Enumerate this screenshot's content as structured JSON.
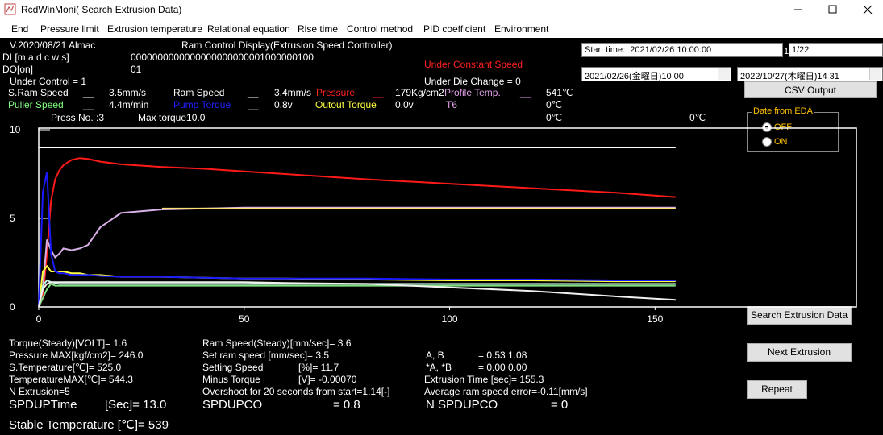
{
  "window_title": "RcdWinMoni( Search Extrusion Data)",
  "menu": [
    "End",
    "Pressure limit",
    "Extrusion temperature",
    "Relational equation",
    "Rise time",
    "Control method",
    "PID coefficient",
    "Environment"
  ],
  "header": [
    "V.2020/08/21 Almac",
    "Ram Control Display(Extrusion Speed Controller)",
    "DI [m a d c w s]",
    "0000000000000000000000001000000100",
    "DO[on]",
    "01",
    "Under Constant Speed",
    "Under Control = 1",
    "Under Die Change = 0"
  ],
  "readouts": [
    "S.Ram Speed",
    "__",
    "3.5mm/s",
    "Ram Speed",
    "__",
    "3.4mm/s",
    "Pressure",
    "__",
    "179Kg/cm2",
    "Profile Temp.",
    "__",
    "541℃",
    "Puller Speed",
    "__",
    "4.4m/min",
    "Pump Torque",
    "__",
    "0.8v",
    "Outout Torque",
    "0.0v",
    "T6",
    "0℃",
    "Press No. :3",
    "Max torque10.0",
    "0℃",
    "0℃"
  ],
  "controls": {
    "start_time_label": "Start time:",
    "start_time": "2021/02/26 10:00:00",
    "index_label": "1",
    "index": "1/22",
    "date_from": "2021/02/26(金曜日)10 00",
    "date_to": "2022/10/27(木曜日)14 31",
    "csv_button": "CSV Output",
    "group_title": "Date from EDA",
    "radio_off": "OFF",
    "radio_on": "ON",
    "search_button": "Search Extrusion Data",
    "next_button": "Next Extrusion",
    "repeat_button": "Repeat"
  },
  "stats": [
    "Torque(Steady)[VOLT]= 1.6",
    "Pressure MAX[kgf/cm2]= 246.0",
    "S.Temperature[℃]= 525.0",
    "TemperatureMAX[℃]= 544.3",
    "N Extrusion=5",
    "SPDUPTime",
    "[Sec]= 13.0",
    "Stable Temperature [℃]= 539",
    "Ram Speed(Steady)[mm/sec]= 3.6",
    "Set ram speed [mm/sec]= 3.5",
    "Setting Speed",
    "[%]= 11.7",
    "Minus Torque",
    "[V]= -0.00070",
    "Overshoot  for 20 seconds from start=1.14[-]",
    "SPDUPCO",
    "= 0.8",
    "A, B",
    "= 0.53 1.08",
    "*A, *B",
    "= 0.00 0.00",
    "Extrusion Time [sec]= 155.3",
    "Average ram speed error=-0.11[mm/s]",
    "N SPDUPCO",
    "= 0"
  ],
  "chart_data": {
    "type": "line",
    "x": [
      0,
      1,
      2,
      3,
      4,
      5,
      6,
      8,
      10,
      12,
      15,
      20,
      30,
      40,
      50,
      60,
      80,
      100,
      120,
      140,
      155
    ],
    "xlim": [
      0,
      199
    ],
    "ylim": [
      0,
      10
    ],
    "xticks": [
      0,
      50,
      100,
      150
    ],
    "yticks": [
      0,
      5,
      10
    ],
    "series": [
      {
        "color": "#ffffff",
        "values": [
          9.0,
          9.0,
          9.0,
          9.0,
          9.0,
          9.0,
          9.0,
          9.0,
          9.0,
          9.0,
          9.0,
          9.0,
          9.0,
          9.0,
          9.0,
          9.0,
          9.0,
          9.0,
          9.0,
          9.0,
          9.0
        ]
      },
      {
        "color": "#ff1a1a",
        "values": [
          0,
          0.5,
          3,
          6,
          7.2,
          7.7,
          8.0,
          8.3,
          8.4,
          8.35,
          8.2,
          8.05,
          7.9,
          7.8,
          7.65,
          7.5,
          7.2,
          6.95,
          6.7,
          6.45,
          6.2
        ]
      },
      {
        "color": "#d8b0e8",
        "values": [
          0,
          1,
          3.8,
          3.2,
          2.8,
          3.0,
          3.3,
          3.2,
          3.3,
          3.5,
          4.5,
          5.3,
          5.5,
          5.55,
          5.6,
          5.6,
          5.6,
          5.6,
          5.6,
          5.6,
          5.6
        ]
      },
      {
        "color": "#ffe070",
        "values": [
          null,
          null,
          null,
          null,
          null,
          null,
          null,
          null,
          null,
          null,
          null,
          null,
          5.55,
          5.55,
          5.55,
          5.55,
          5.55,
          5.55,
          5.55,
          5.55,
          5.55
        ]
      },
      {
        "color": "#ffff40",
        "values": [
          0,
          2.0,
          2.3,
          2.0,
          2.0,
          2.0,
          2.0,
          1.9,
          1.9,
          1.8,
          1.8,
          1.7,
          1.7,
          1.65,
          1.6,
          1.6,
          1.55,
          1.5,
          1.5,
          1.45,
          1.45
        ]
      },
      {
        "color": "#1a1aff",
        "values": [
          0,
          6.5,
          7.6,
          3.0,
          2.0,
          1.9,
          1.9,
          1.8,
          1.8,
          1.8,
          1.75,
          1.7,
          1.7,
          1.65,
          1.6,
          1.6,
          1.6,
          1.55,
          1.55,
          1.5,
          1.5
        ]
      },
      {
        "color": "#80e080",
        "values": [
          0,
          0.5,
          1.0,
          1.3,
          1.2,
          1.2,
          1.2,
          1.2,
          1.2,
          1.2,
          1.2,
          1.2,
          1.2,
          1.2,
          1.2,
          1.2,
          1.2,
          1.2,
          1.2,
          1.2,
          1.2
        ]
      },
      {
        "color": "#c0f0e0",
        "values": [
          0,
          1.2,
          1.5,
          1.4,
          1.35,
          1.3,
          1.3,
          1.3,
          1.3,
          1.3,
          1.3,
          1.3,
          1.3,
          1.3,
          1.3,
          1.3,
          1.3,
          1.3,
          1.3,
          1.3,
          1.3
        ]
      },
      {
        "color": "#f0f0f0",
        "values": [
          0,
          1.0,
          1.3,
          1.4,
          1.4,
          1.4,
          1.4,
          1.4,
          1.4,
          1.4,
          1.4,
          1.4,
          1.4,
          1.4,
          1.4,
          1.35,
          1.3,
          1.1,
          0.9,
          0.6,
          0.4
        ]
      }
    ]
  }
}
